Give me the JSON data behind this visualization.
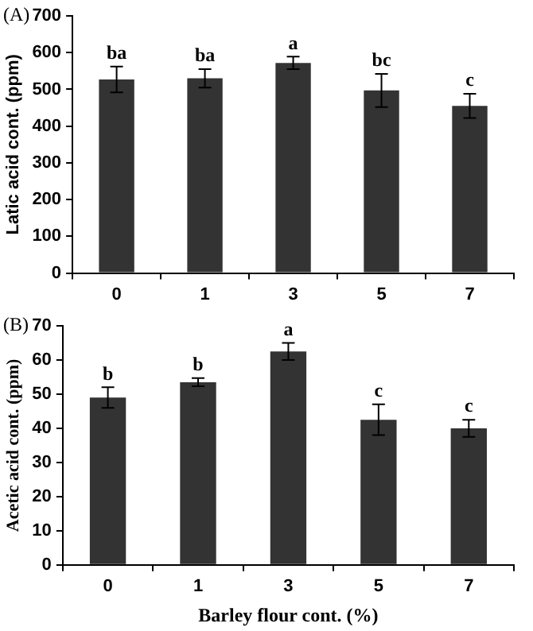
{
  "chart_data": [
    {
      "type": "bar",
      "title": "(A)",
      "ylabel": "Latic acid cont. (ppm)",
      "categories": [
        "0",
        "1",
        "3",
        "5",
        "7"
      ],
      "color": "#333333",
      "values": [
        527,
        530,
        572,
        497,
        455
      ],
      "errors": [
        35,
        25,
        17,
        45,
        33
      ],
      "ylim": [
        0,
        700
      ],
      "yticks": [
        0,
        100,
        200,
        300,
        400,
        500,
        600,
        700
      ],
      "grid": false,
      "annotations": [
        {
          "text": "ba",
          "x": "0",
          "y": 562
        },
        {
          "text": "ba",
          "x": "1",
          "y": 555
        },
        {
          "text": "a",
          "x": "3",
          "y": 589
        },
        {
          "text": "bc",
          "x": "5",
          "y": 542
        },
        {
          "text": "c",
          "x": "7",
          "y": 488
        }
      ]
    },
    {
      "type": "bar",
      "title": "(B)",
      "xlabel": "Barley flour cont. (%)",
      "ylabel": "Acetic acid cont. (ppm)",
      "categories": [
        "0",
        "1",
        "3",
        "5",
        "7"
      ],
      "color": "#333333",
      "values": [
        49,
        53.5,
        62.5,
        42.5,
        40
      ],
      "errors": [
        3,
        1.2,
        2.5,
        4.5,
        2.5
      ],
      "ylim": [
        0,
        70
      ],
      "yticks": [
        0,
        10,
        20,
        30,
        40,
        50,
        60,
        70
      ],
      "grid": false,
      "annotations": [
        {
          "text": "b",
          "x": "0",
          "y": 52
        },
        {
          "text": "b",
          "x": "1",
          "y": 54.7
        },
        {
          "text": "a",
          "x": "3",
          "y": 65
        },
        {
          "text": "c",
          "x": "5",
          "y": 47
        },
        {
          "text": "c",
          "x": "7",
          "y": 42.5
        }
      ]
    }
  ]
}
